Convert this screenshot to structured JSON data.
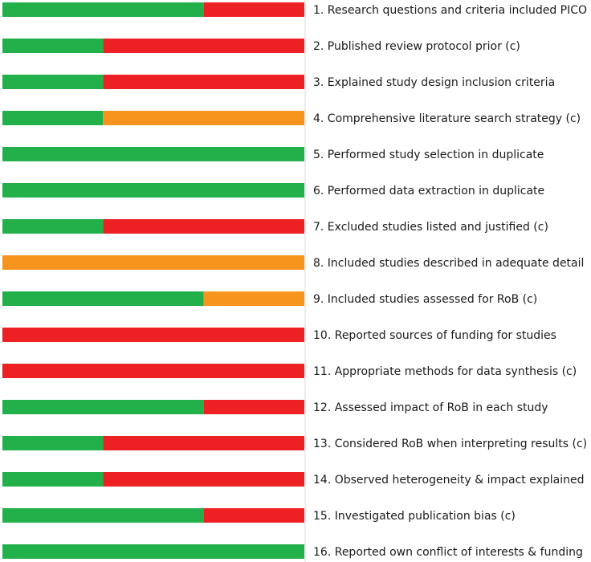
{
  "chart_data": {
    "type": "bar",
    "orientation": "horizontal",
    "stacked": true,
    "title": "",
    "xlabel": "",
    "ylabel": "",
    "xlim": [
      0,
      3
    ],
    "grid": false,
    "legend": "none",
    "colors": {
      "green": "#22b04b",
      "red": "#ed2024",
      "orange": "#f7941d"
    },
    "categories": [
      "1.  Research questions and criteria included PICO",
      "2.  Published review protocol prior (c)",
      "3.  Explained study design inclusion criteria",
      "4.  Comprehensive literature search strategy (c)",
      "5.  Performed study selection in duplicate",
      "6.  Performed data extraction in duplicate",
      "7.  Excluded studies listed and justified (c)",
      "8.  Included studies described in adequate detail",
      "9.  Included studies assessed for RoB (c)",
      "10.  Reported sources of funding for studies",
      "11.  Appropriate methods for data synthesis (c)",
      "12.  Assessed impact of RoB in each study",
      "13.  Considered RoB when interpreting results (c)",
      "14.  Observed heterogeneity & impact explained",
      "15.  Investigated publication bias (c)",
      "16.  Reported own conflict of interests & funding"
    ],
    "series": [
      {
        "color": "green",
        "values": [
          2,
          1,
          1,
          1,
          3,
          3,
          1,
          0,
          2,
          0,
          0,
          2,
          1,
          1,
          2,
          3
        ]
      },
      {
        "color": "orange",
        "values": [
          0,
          0,
          0,
          2,
          0,
          0,
          0,
          3,
          1,
          0,
          0,
          0,
          0,
          0,
          0,
          0
        ]
      },
      {
        "color": "red",
        "values": [
          1,
          2,
          2,
          0,
          0,
          0,
          2,
          0,
          0,
          3,
          3,
          1,
          2,
          2,
          1,
          0
        ]
      }
    ]
  }
}
